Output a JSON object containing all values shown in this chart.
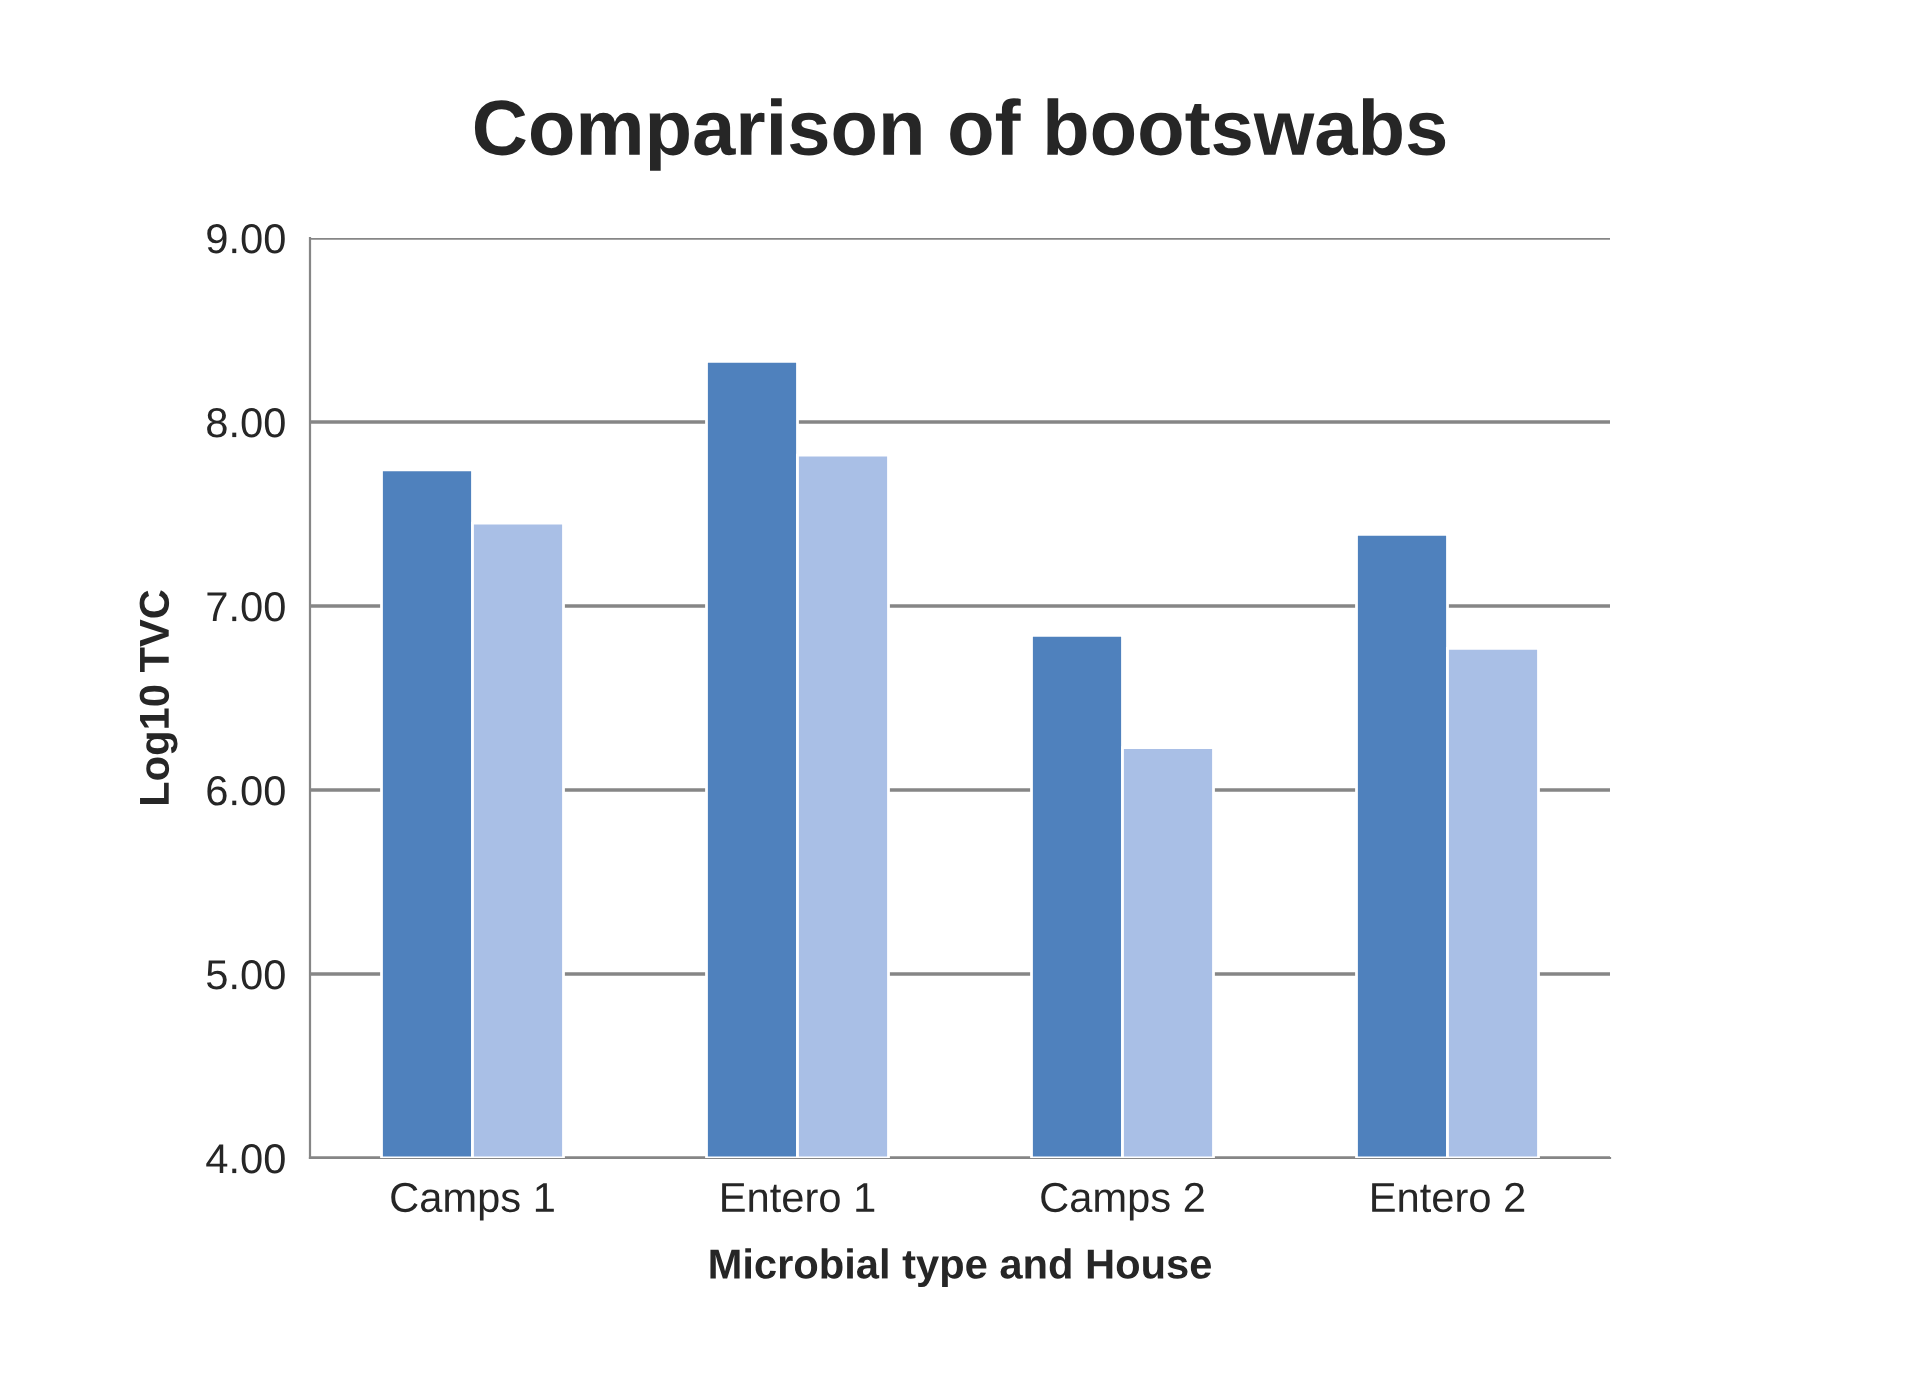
{
  "chart_data": {
    "type": "bar",
    "title": "Comparison of bootswabs",
    "xlabel": "Microbial type and House",
    "ylabel": "Log10 TVC",
    "categories": [
      "Camps 1",
      "Entero 1",
      "Camps 2",
      "Entero 2"
    ],
    "series": [
      {
        "color": "#4f81bd",
        "values": [
          7.74,
          8.33,
          6.84,
          7.39
        ]
      },
      {
        "color": "#a9bfe6",
        "values": [
          7.45,
          7.82,
          6.23,
          6.77
        ]
      }
    ],
    "ylim": [
      4,
      9
    ],
    "yticks": [
      {
        "value": 4,
        "label": "4.00"
      },
      {
        "value": 5,
        "label": "5.00"
      },
      {
        "value": 6,
        "label": "6.00"
      },
      {
        "value": 7,
        "label": "7.00"
      },
      {
        "value": 8,
        "label": "8.00"
      },
      {
        "value": 9,
        "label": "9.00"
      }
    ],
    "grid": "y"
  }
}
